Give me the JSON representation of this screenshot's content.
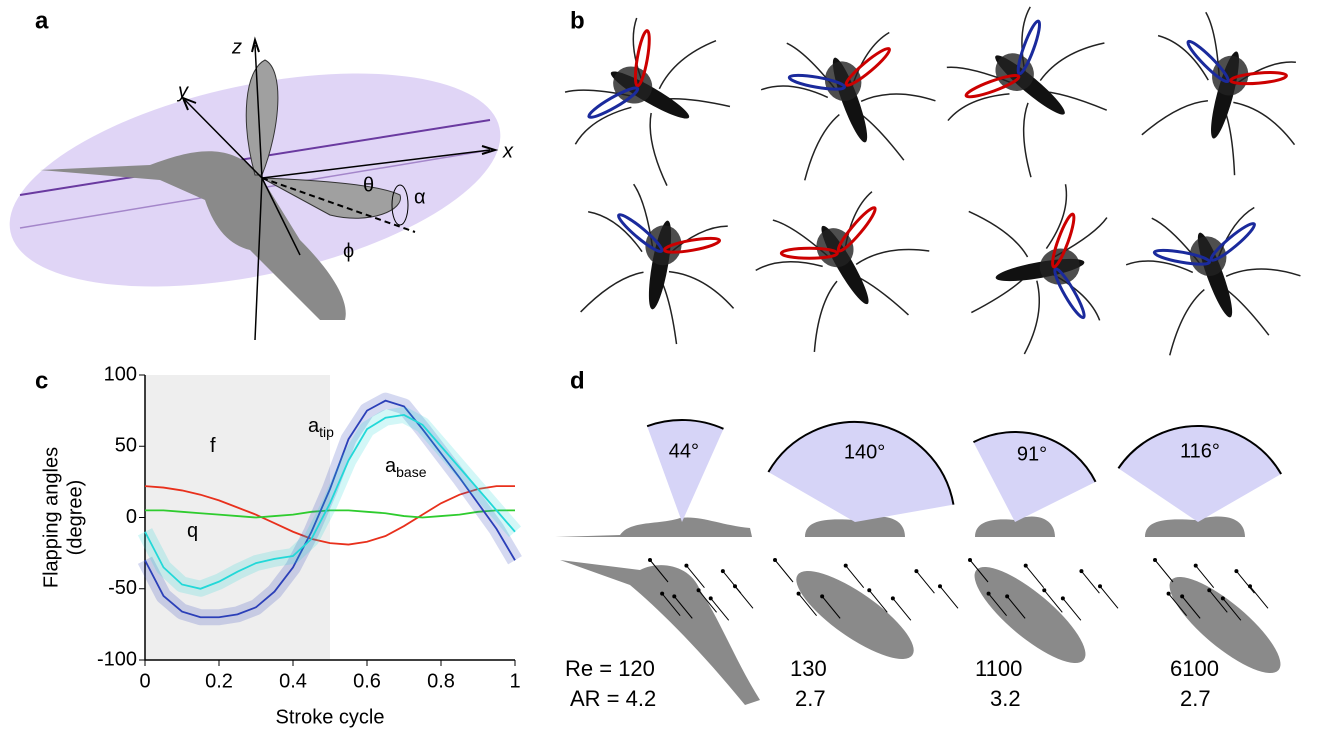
{
  "panels": {
    "a": {
      "label": "a",
      "axes": {
        "z": "z",
        "y": "y",
        "x": "x",
        "theta": "θ",
        "alpha": "α",
        "phi": "ϕ"
      }
    },
    "b": {
      "label": "b"
    },
    "c": {
      "label": "c"
    },
    "d": {
      "label": "d",
      "angles": [
        44,
        140,
        91,
        116
      ],
      "angle_labels": [
        "44°",
        "140°",
        "91°",
        "116°"
      ],
      "re_labels": [
        "Re = 120",
        "130",
        "1100",
        "6100"
      ],
      "ar_labels": [
        "AR = 4.2",
        "2.7",
        "3.2",
        "2.7"
      ]
    }
  },
  "chart_data": {
    "type": "line",
    "xlabel": "Stroke cycle",
    "ylabel": [
      "Flapping angles",
      "(degree)"
    ],
    "xlim": [
      0,
      1
    ],
    "ylim": [
      -100,
      100
    ],
    "xticks": [
      0,
      0.2,
      0.4,
      0.6,
      0.8,
      1
    ],
    "yticks": [
      100,
      50,
      0,
      -50,
      -100
    ],
    "shaded_xlim": [
      0,
      0.5
    ],
    "x": [
      0,
      0.05,
      0.1,
      0.15,
      0.2,
      0.25,
      0.3,
      0.35,
      0.4,
      0.45,
      0.5,
      0.55,
      0.6,
      0.65,
      0.7,
      0.75,
      0.8,
      0.85,
      0.9,
      0.95,
      1
    ],
    "series": [
      {
        "name": "f",
        "color": "#e8301c",
        "values": [
          22,
          21,
          19,
          16,
          12,
          7,
          2,
          -4,
          -10,
          -15,
          -18,
          -19,
          -17,
          -13,
          -6,
          2,
          10,
          16,
          20,
          22,
          22
        ]
      },
      {
        "name": "q",
        "color": "#2ecc2e",
        "values": [
          5,
          5,
          4,
          3,
          2,
          1,
          0,
          1,
          2,
          4,
          5,
          5,
          4,
          3,
          1,
          0,
          1,
          2,
          4,
          5,
          5
        ]
      },
      {
        "name": "a",
        "subscript": "tip",
        "color": "#2b3fb8",
        "values": [
          -30,
          -55,
          -66,
          -70,
          -70,
          -68,
          -63,
          -52,
          -35,
          -10,
          20,
          55,
          75,
          82,
          78,
          62,
          45,
          28,
          10,
          -8,
          -30
        ]
      },
      {
        "name": "a",
        "subscript": "base",
        "color": "#22d8d8",
        "values": [
          -10,
          -35,
          -47,
          -50,
          -45,
          -38,
          -32,
          -29,
          -27,
          -15,
          10,
          40,
          62,
          70,
          72,
          65,
          50,
          35,
          20,
          5,
          -10
        ]
      }
    ]
  }
}
